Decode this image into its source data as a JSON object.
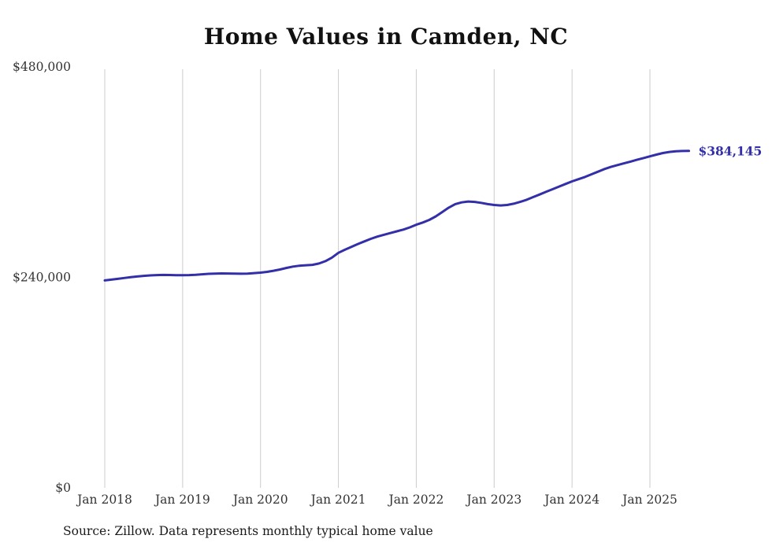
{
  "chart_data": {
    "type": "line",
    "title": "Home Values in Camden, NC",
    "xlabel": "",
    "ylabel": "",
    "ylim": [
      0,
      480000
    ],
    "grid": "vertical-only",
    "grid_color": "#cccccc",
    "text_color": "#333333",
    "x_tick_labels": [
      "Jan 2018",
      "Jan 2019",
      "Jan 2020",
      "Jan 2021",
      "Jan 2022",
      "Jan 2023",
      "Jan 2024",
      "Jan 2025"
    ],
    "x_tick_month_indices": [
      0,
      12,
      24,
      36,
      48,
      60,
      72,
      84
    ],
    "yticks": [
      {
        "value": 0,
        "label": "$0"
      },
      {
        "value": 240000,
        "label": "$240,000"
      },
      {
        "value": 480000,
        "label": "$480,000"
      }
    ],
    "series": [
      {
        "name": "Monthly typical home value",
        "color": "#332fa8",
        "start": "Jan 2018",
        "frequency": "monthly",
        "values": [
          236500,
          237400,
          238300,
          239300,
          240200,
          241000,
          241700,
          242200,
          242600,
          242800,
          242700,
          242500,
          242400,
          242600,
          243000,
          243500,
          244000,
          244300,
          244500,
          244400,
          244200,
          244100,
          244300,
          244800,
          245400,
          246300,
          247500,
          249000,
          250800,
          252300,
          253300,
          253800,
          254300,
          255800,
          258500,
          262500,
          268000,
          271500,
          274800,
          278000,
          281000,
          284000,
          286500,
          288500,
          290500,
          292500,
          294500,
          297000,
          300000,
          302500,
          305500,
          309500,
          314500,
          319500,
          323500,
          325500,
          326500,
          326000,
          325000,
          323500,
          322500,
          322000,
          322500,
          324000,
          326000,
          328500,
          331500,
          334500,
          337500,
          340500,
          343500,
          346500,
          349500,
          352000,
          354500,
          357500,
          360500,
          363500,
          366000,
          368000,
          370000,
          372000,
          374000,
          376000,
          378000,
          380000,
          381800,
          383000,
          383800,
          384100,
          384145
        ]
      }
    ],
    "end_label": "$384,145",
    "source_note": "Source: Zillow. Data represents monthly typical home value"
  }
}
